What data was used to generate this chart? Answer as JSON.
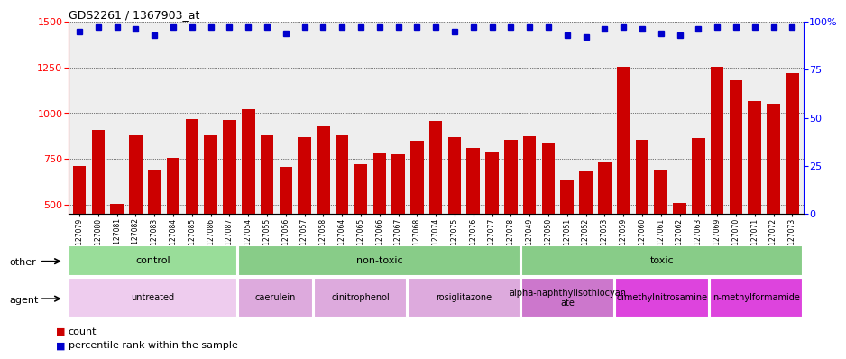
{
  "title": "GDS2261 / 1367903_at",
  "samples": [
    "GSM127079",
    "GSM127080",
    "GSM127081",
    "GSM127082",
    "GSM127083",
    "GSM127084",
    "GSM127085",
    "GSM127086",
    "GSM127087",
    "GSM127054",
    "GSM127055",
    "GSM127056",
    "GSM127057",
    "GSM127058",
    "GSM127064",
    "GSM127065",
    "GSM127066",
    "GSM127067",
    "GSM127068",
    "GSM127074",
    "GSM127075",
    "GSM127076",
    "GSM127077",
    "GSM127078",
    "GSM127049",
    "GSM127050",
    "GSM127051",
    "GSM127052",
    "GSM127053",
    "GSM127059",
    "GSM127060",
    "GSM127061",
    "GSM127062",
    "GSM127063",
    "GSM127069",
    "GSM127070",
    "GSM127071",
    "GSM127072",
    "GSM127073"
  ],
  "counts": [
    710,
    910,
    505,
    880,
    685,
    755,
    970,
    880,
    965,
    1020,
    880,
    705,
    870,
    930,
    880,
    720,
    780,
    775,
    850,
    960,
    870,
    810,
    790,
    855,
    875,
    840,
    635,
    680,
    730,
    1255,
    855,
    690,
    510,
    865,
    1255,
    1180,
    1065,
    1050,
    1220
  ],
  "percentile_ranks": [
    95,
    97,
    97,
    96,
    93,
    97,
    97,
    97,
    97,
    97,
    97,
    94,
    97,
    97,
    97,
    97,
    97,
    97,
    97,
    97,
    95,
    97,
    97,
    97,
    97,
    97,
    93,
    92,
    96,
    97,
    96,
    94,
    93,
    96,
    97,
    97,
    97,
    97,
    97
  ],
  "bar_color": "#cc0000",
  "dot_color": "#0000cc",
  "ylim_left": [
    450,
    1500
  ],
  "ylim_right": [
    0,
    100
  ],
  "yticks_left": [
    500,
    750,
    1000,
    1250,
    1500
  ],
  "yticks_right": [
    0,
    25,
    50,
    75,
    100
  ],
  "other_groups": [
    {
      "label": "control",
      "start": 0,
      "end": 9,
      "color": "#99dd99"
    },
    {
      "label": "non-toxic",
      "start": 9,
      "end": 24,
      "color": "#88cc88"
    },
    {
      "label": "toxic",
      "start": 24,
      "end": 39,
      "color": "#88cc88"
    }
  ],
  "agent_groups": [
    {
      "label": "untreated",
      "start": 0,
      "end": 9,
      "color": "#eeccee"
    },
    {
      "label": "caerulein",
      "start": 9,
      "end": 13,
      "color": "#ddaadd"
    },
    {
      "label": "dinitrophenol",
      "start": 13,
      "end": 18,
      "color": "#ddaadd"
    },
    {
      "label": "rosiglitazone",
      "start": 18,
      "end": 24,
      "color": "#ddaadd"
    },
    {
      "label": "alpha-naphthylisothiocyan\nate",
      "start": 24,
      "end": 29,
      "color": "#cc77cc"
    },
    {
      "label": "dimethylnitrosamine",
      "start": 29,
      "end": 34,
      "color": "#dd44dd"
    },
    {
      "label": "n-methylformamide",
      "start": 34,
      "end": 39,
      "color": "#dd44dd"
    }
  ],
  "background_color": "#eeeeee",
  "fig_bg": "#ffffff"
}
